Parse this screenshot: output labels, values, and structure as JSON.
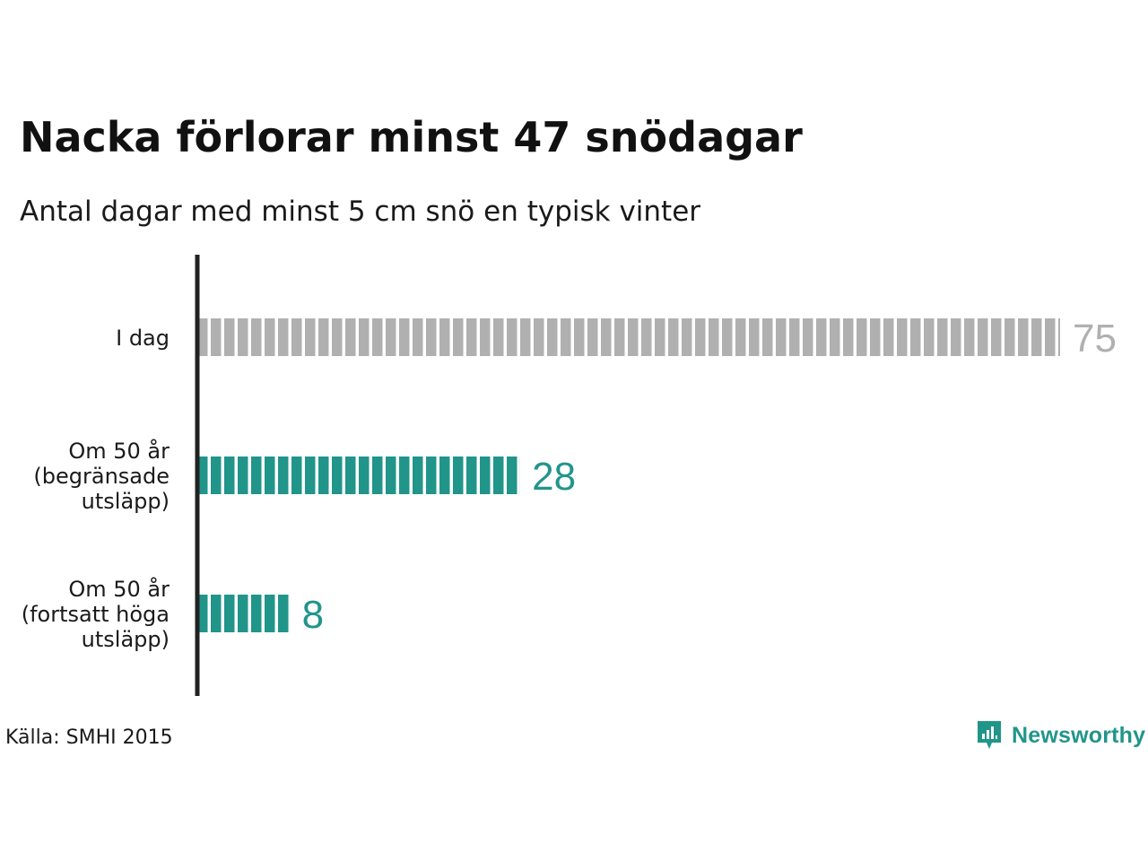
{
  "title": "Nacka förlorar minst 47 snödagar",
  "subtitle": "Antal dagar med minst 5 cm snö en typisk vinter",
  "source": "Källa: SMHI 2015",
  "brand": {
    "name": "Newsworthy",
    "icon": "bar-chart-bubble-icon",
    "color": "#21958a"
  },
  "colors": {
    "today": "#b0b0b0",
    "future": "#21958a",
    "axis": "#222222"
  },
  "chart_data": {
    "type": "bar",
    "orientation": "horizontal",
    "categories": [
      [
        "I dag"
      ],
      [
        "Om 50 år",
        "(begränsade",
        "utsläpp)"
      ],
      [
        "Om 50 år",
        "(fortsatt höga",
        "utsläpp)"
      ]
    ],
    "values": [
      75,
      28,
      8
    ],
    "value_labels": [
      "75",
      "28",
      "8"
    ],
    "bar_colors": [
      "#b0b0b0",
      "#21958a",
      "#21958a"
    ],
    "xlim": [
      0,
      75
    ],
    "grid": false,
    "legend": "none",
    "title": "Nacka förlorar minst 47 snödagar",
    "subtitle": "Antal dagar med minst 5 cm snö en typisk vinter"
  }
}
